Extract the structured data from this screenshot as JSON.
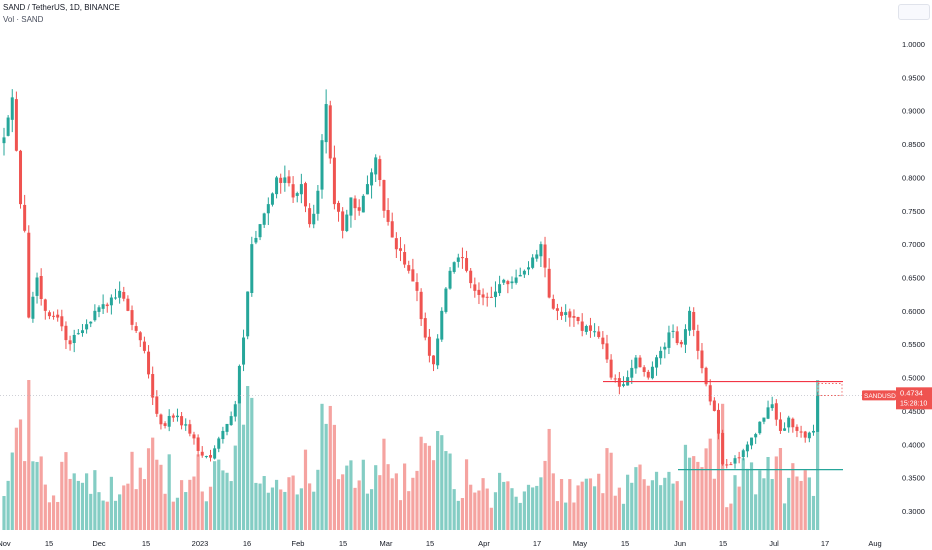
{
  "header": {
    "title": "SAND / TetherUS, 1D, BINANCE",
    "volume_label": "Vol · SAND"
  },
  "price_tag": {
    "symbol": "SANDUSDT",
    "price": "0.4734",
    "countdown": "15:28:10"
  },
  "colors": {
    "up": "#26a69a",
    "down": "#ef5350",
    "up_volume": "#84cdc4",
    "down_volume": "#f5a3a0",
    "resistance_line": "#f23645",
    "support_line": "#26a69a"
  },
  "chart_data": {
    "type": "candlestick",
    "symbol": "SAND / TetherUS",
    "interval": "1D",
    "exchange": "BINANCE",
    "y_ticks": [
      "1.0000",
      "0.9500",
      "0.9000",
      "0.8500",
      "0.8000",
      "0.7500",
      "0.7000",
      "0.6500",
      "0.6000",
      "0.5500",
      "0.5000",
      "0.4500",
      "0.4000",
      "0.3500",
      "0.3000"
    ],
    "ylim": [
      0.275,
      1.03
    ],
    "x_ticks": [
      "Nov",
      "15",
      "Dec",
      "15",
      "2023",
      "16",
      "Feb",
      "15",
      "Mar",
      "15",
      "Apr",
      "17",
      "May",
      "15",
      "Jun",
      "15",
      "Jul",
      "17",
      "Aug"
    ],
    "horizontal_lines": [
      {
        "name": "resistance",
        "price": 0.494
      },
      {
        "name": "support",
        "price": 0.362
      }
    ],
    "price_anchors": [
      [
        0,
        0.86
      ],
      [
        2,
        0.92
      ],
      [
        3,
        0.84
      ],
      [
        4,
        0.76
      ],
      [
        5,
        0.72
      ],
      [
        6,
        0.59
      ],
      [
        8,
        0.65
      ],
      [
        10,
        0.6
      ],
      [
        13,
        0.59
      ],
      [
        16,
        0.55
      ],
      [
        20,
        0.58
      ],
      [
        24,
        0.61
      ],
      [
        28,
        0.63
      ],
      [
        30,
        0.6
      ],
      [
        32,
        0.57
      ],
      [
        34,
        0.54
      ],
      [
        36,
        0.47
      ],
      [
        38,
        0.43
      ],
      [
        41,
        0.44
      ],
      [
        44,
        0.43
      ],
      [
        47,
        0.39
      ],
      [
        50,
        0.38
      ],
      [
        53,
        0.42
      ],
      [
        56,
        0.46
      ],
      [
        58,
        0.56
      ],
      [
        60,
        0.7
      ],
      [
        62,
        0.73
      ],
      [
        64,
        0.76
      ],
      [
        66,
        0.8
      ],
      [
        68,
        0.8
      ],
      [
        70,
        0.77
      ],
      [
        72,
        0.79
      ],
      [
        74,
        0.73
      ],
      [
        76,
        0.78
      ],
      [
        78,
        0.91
      ],
      [
        80,
        0.76
      ],
      [
        82,
        0.72
      ],
      [
        84,
        0.77
      ],
      [
        86,
        0.75
      ],
      [
        88,
        0.79
      ],
      [
        90,
        0.83
      ],
      [
        92,
        0.75
      ],
      [
        94,
        0.71
      ],
      [
        96,
        0.69
      ],
      [
        98,
        0.66
      ],
      [
        100,
        0.63
      ],
      [
        102,
        0.56
      ],
      [
        104,
        0.52
      ],
      [
        106,
        0.6
      ],
      [
        108,
        0.66
      ],
      [
        110,
        0.68
      ],
      [
        112,
        0.66
      ],
      [
        114,
        0.63
      ],
      [
        116,
        0.62
      ],
      [
        118,
        0.62
      ],
      [
        120,
        0.64
      ],
      [
        122,
        0.64
      ],
      [
        124,
        0.65
      ],
      [
        126,
        0.66
      ],
      [
        128,
        0.68
      ],
      [
        130,
        0.7
      ],
      [
        132,
        0.62
      ],
      [
        134,
        0.6
      ],
      [
        137,
        0.59
      ],
      [
        140,
        0.57
      ],
      [
        142,
        0.57
      ],
      [
        145,
        0.55
      ],
      [
        147,
        0.5
      ],
      [
        150,
        0.49
      ],
      [
        153,
        0.53
      ],
      [
        156,
        0.5
      ],
      [
        159,
        0.54
      ],
      [
        162,
        0.57
      ],
      [
        164,
        0.55
      ],
      [
        166,
        0.6
      ],
      [
        168,
        0.54
      ],
      [
        170,
        0.49
      ],
      [
        172,
        0.45
      ],
      [
        174,
        0.37
      ],
      [
        176,
        0.37
      ],
      [
        178,
        0.38
      ],
      [
        181,
        0.41
      ],
      [
        184,
        0.44
      ],
      [
        186,
        0.46
      ],
      [
        188,
        0.42
      ],
      [
        190,
        0.44
      ],
      [
        192,
        0.42
      ],
      [
        194,
        0.41
      ],
      [
        196,
        0.42
      ],
      [
        197,
        0.4734
      ]
    ],
    "grid": false,
    "legend": "top-left"
  }
}
